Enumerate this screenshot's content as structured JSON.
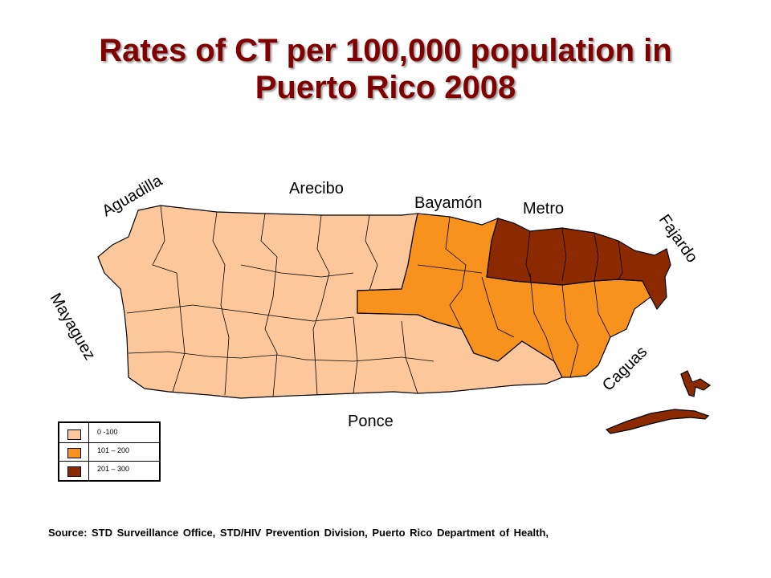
{
  "title": {
    "line1": "Rates of CT per 100,000 population in",
    "line2": "Puerto Rico 2008"
  },
  "regions": {
    "aguadilla": "Aguadilla",
    "arecibo": "Arecibo",
    "bayamon": "Bayamón",
    "metro": "Metro",
    "fajardo": "Fajardo",
    "mayaguez": "Mayaguez",
    "ponce": "Ponce",
    "caguas": "Caguas"
  },
  "region_rate_class": {
    "Aguadilla": "0 -100",
    "Mayaguez": "0 -100",
    "Arecibo": "0 -100",
    "Ponce": "0 -100",
    "Bayamón": "101 – 200",
    "Caguas": "101 – 200",
    "Metro": "201 – 300",
    "Fajardo": "201 – 300"
  },
  "legend": [
    {
      "label": "0 -100",
      "color": "#fcc89b"
    },
    {
      "label": "101 – 200",
      "color": "#f7921e"
    },
    {
      "label": "201 – 300",
      "color": "#8b2a00"
    }
  ],
  "colors": {
    "low": "#fcc89b",
    "mid": "#f7921e",
    "high": "#8b2a00",
    "title": "#800000"
  },
  "source": "Source: STD Surveillance Office, STD/HIV Prevention Division, Puerto Rico Department of Health,"
}
